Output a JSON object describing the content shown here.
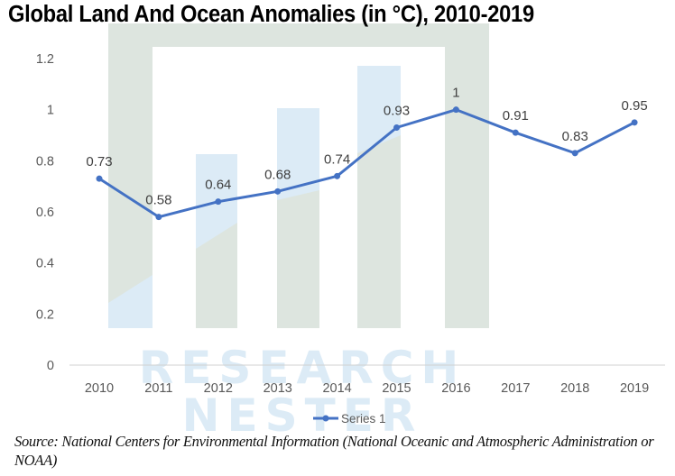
{
  "chart_data": {
    "type": "line",
    "title": "Global Land And Ocean Anomalies (in °C), 2010-2019",
    "xlabel": "",
    "ylabel": "",
    "categories": [
      "2010",
      "2011",
      "2012",
      "2013",
      "2014",
      "2015",
      "2016",
      "2017",
      "2018",
      "2019"
    ],
    "series": [
      {
        "name": "Series 1",
        "values": [
          0.73,
          0.58,
          0.64,
          0.68,
          0.74,
          0.93,
          1,
          0.91,
          0.83,
          0.95
        ],
        "color": "#4472c4"
      }
    ],
    "data_labels": [
      "0.73",
      "0.58",
      "0.64",
      "0.68",
      "0.74",
      "0.93",
      "1",
      "0.91",
      "0.83",
      "0.95"
    ],
    "ylim": [
      0,
      1.2
    ],
    "yticks": [
      0,
      0.2,
      0.4,
      0.6,
      0.8,
      1,
      1.2
    ],
    "ytick_labels": [
      "0",
      "0.2",
      "0.4",
      "0.6",
      "0.8",
      "1",
      "1.2"
    ],
    "grid": false,
    "legend": {
      "position": "bottom",
      "entries": [
        "Series 1"
      ]
    }
  },
  "watermark": {
    "line1": "RESEARCH",
    "line2": "NESTER",
    "color_green": "#dde5df",
    "color_blue": "#dcebf6"
  },
  "source": "Source: National Centers for Environmental Information (National Oceanic and Atmospheric Administration or NOAA)"
}
